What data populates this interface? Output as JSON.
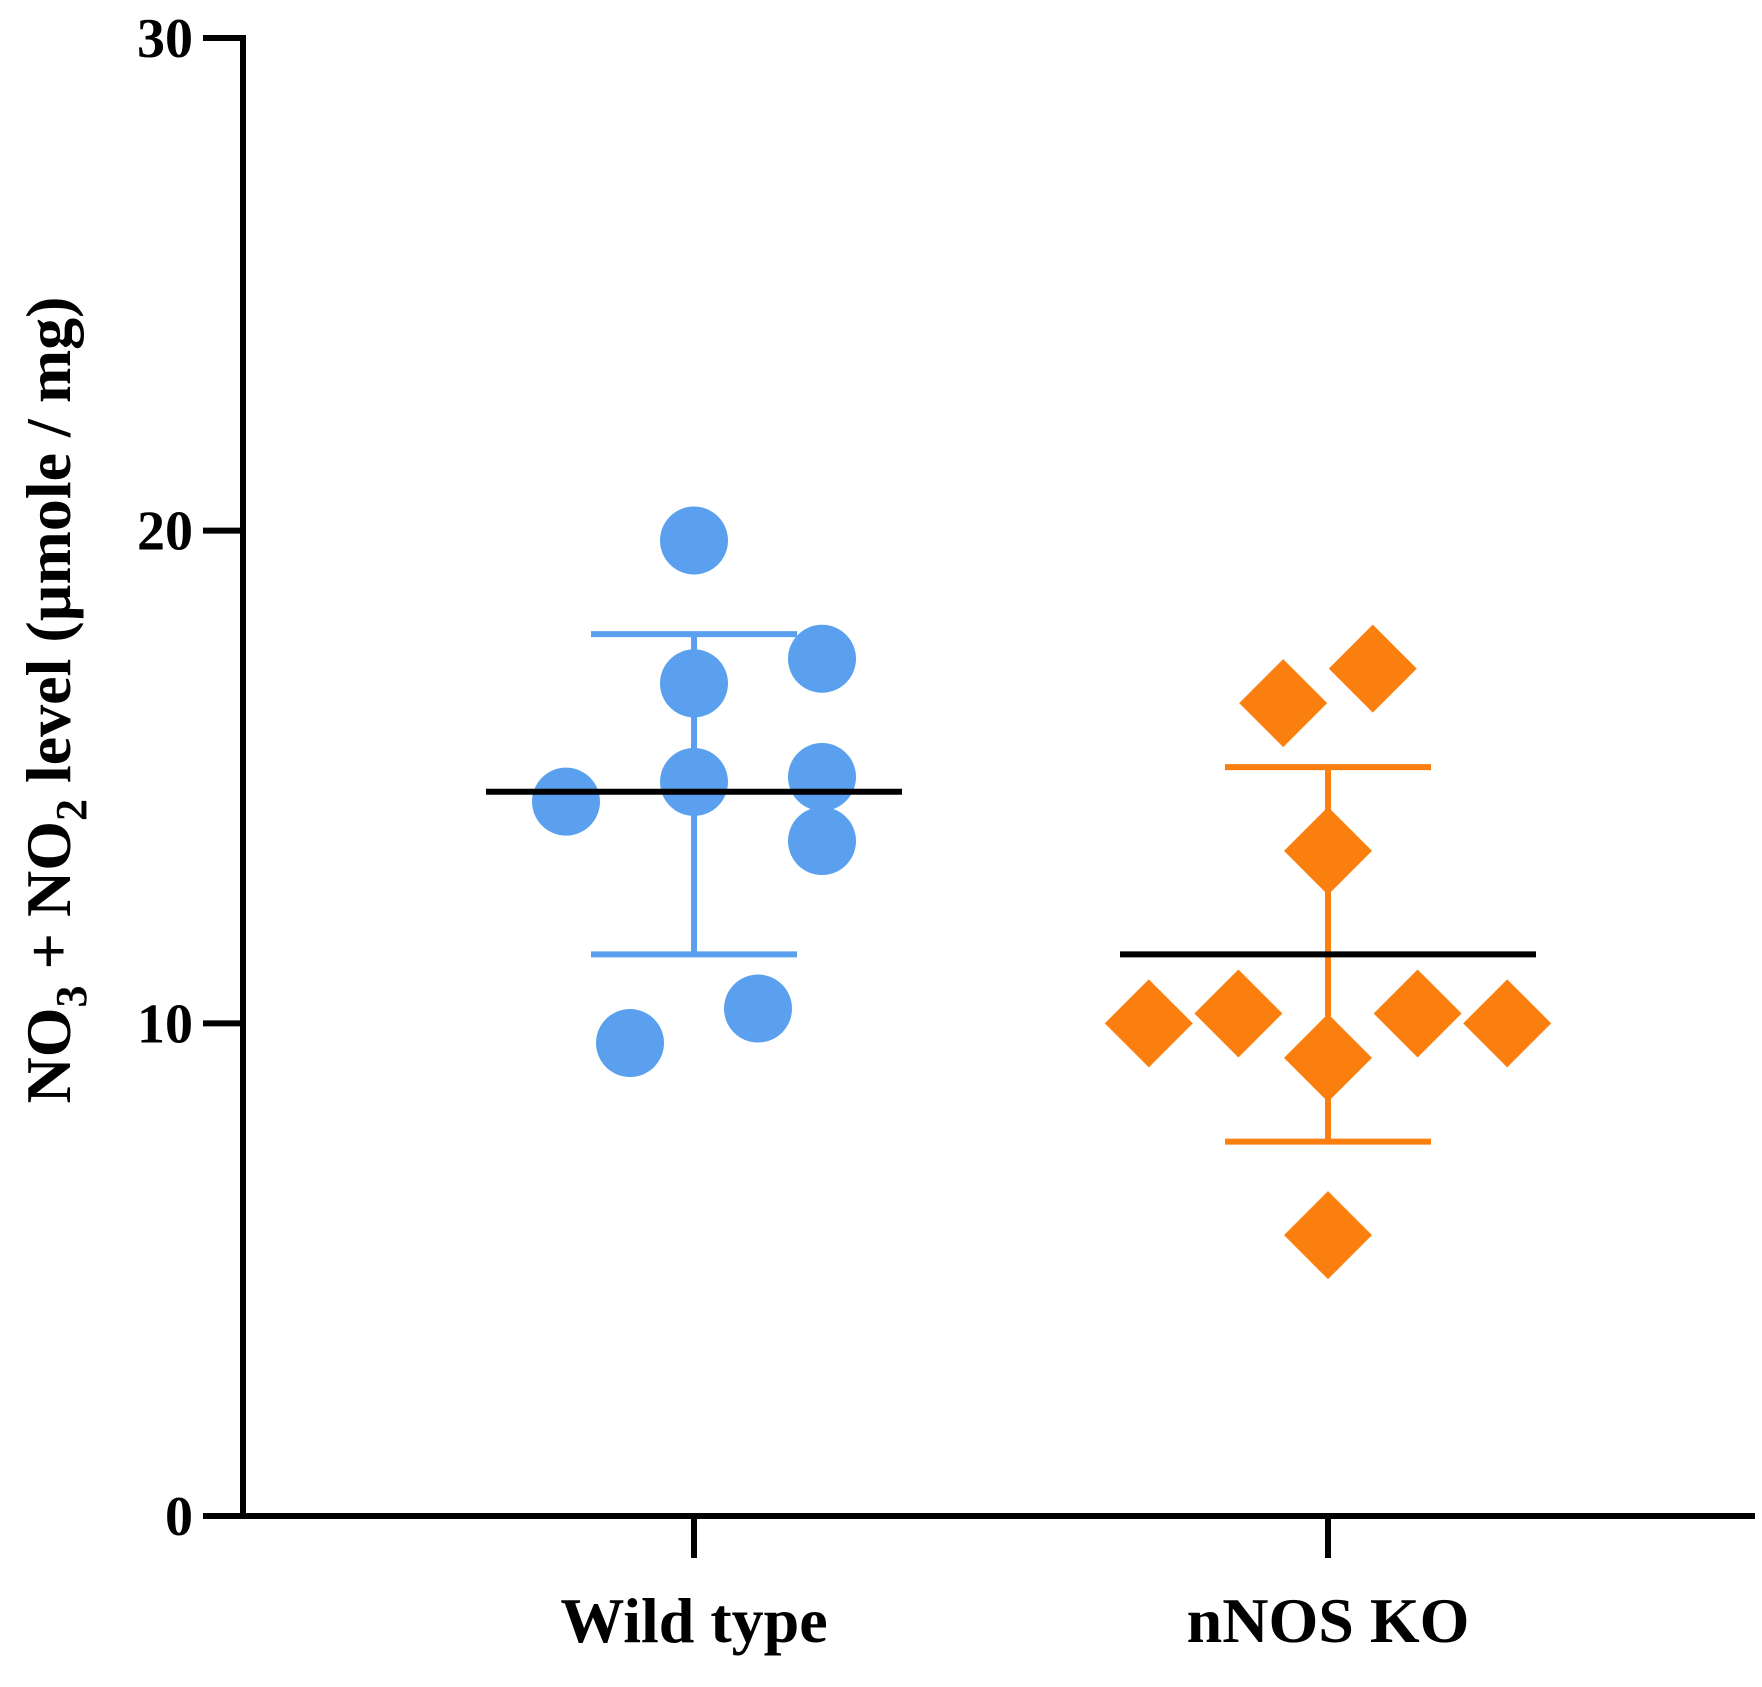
{
  "chart_data": {
    "type": "scatter",
    "title": "",
    "xlabel": "",
    "ylabel": {
      "parts": [
        "NO",
        "3",
        " + NO",
        "2",
        " level (µmole / mg)"
      ]
    },
    "ylim": [
      0,
      30
    ],
    "y_ticks": [
      0,
      10,
      20,
      30
    ],
    "y_tick_labels": [
      "0",
      "10",
      "20",
      "30"
    ],
    "categories": [
      "Wild type",
      "nNOS KO"
    ],
    "grid": false,
    "legend": "none",
    "series": [
      {
        "name": "Wild type",
        "marker": "circle",
        "color": "#5aa0ee",
        "points": [
          {
            "offset": 0.0,
            "y": 19.8
          },
          {
            "offset": 0.0,
            "y": 16.9
          },
          {
            "offset": 0.0,
            "y": 14.9
          },
          {
            "offset": 1.0,
            "y": 17.4
          },
          {
            "offset": 1.0,
            "y": 15.0
          },
          {
            "offset": 1.0,
            "y": 13.7
          },
          {
            "offset": -1.0,
            "y": 14.5
          },
          {
            "offset": 0.5,
            "y": 10.3
          },
          {
            "offset": -0.5,
            "y": 9.6
          }
        ],
        "mean": 14.7,
        "sd_upper": 17.9,
        "sd_lower": 11.4
      },
      {
        "name": "nNOS KO",
        "marker": "diamond",
        "color": "#fb7f0e",
        "points": [
          {
            "offset": 0.35,
            "y": 17.2
          },
          {
            "offset": -0.35,
            "y": 16.5
          },
          {
            "offset": 0.0,
            "y": 13.5
          },
          {
            "offset": -1.4,
            "y": 10.0
          },
          {
            "offset": -0.7,
            "y": 10.2
          },
          {
            "offset": 0.7,
            "y": 10.2
          },
          {
            "offset": 1.4,
            "y": 10.0
          },
          {
            "offset": 0.0,
            "y": 9.3
          },
          {
            "offset": 0.0,
            "y": 5.7
          }
        ],
        "mean": 11.4,
        "sd_upper": 15.2,
        "sd_lower": 7.6
      }
    ]
  }
}
